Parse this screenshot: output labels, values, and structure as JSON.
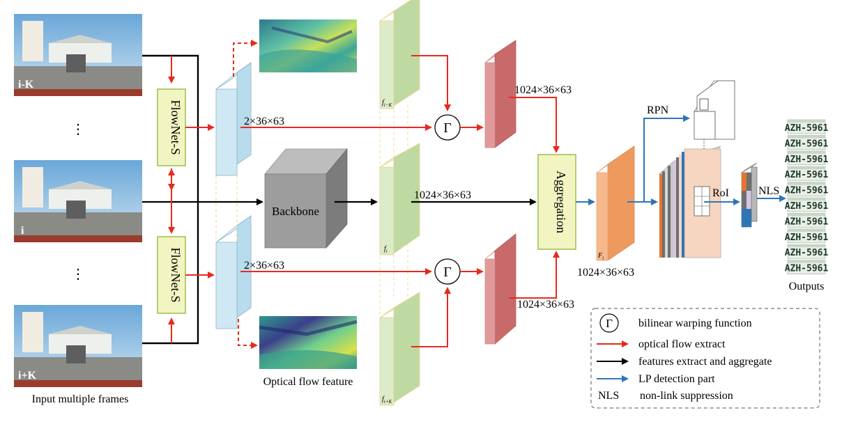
{
  "frames": {
    "top_tag": "i-K",
    "mid_tag": "i",
    "bot_tag": "i+K",
    "ellipsis": "⋮",
    "caption": "Input multiple frames"
  },
  "flownet_label": "FlowNet-S",
  "flow_dims": "2×36×63",
  "backbone_label": "Backbone",
  "feature_dims": "1024×36×63",
  "optical_flow_caption": "Optical flow feature",
  "feature_labels": {
    "top": "f",
    "top_sub": "i−K",
    "mid": "f",
    "mid_sub": "i",
    "bot": "f",
    "bot_sub": "i+K"
  },
  "warp_symbol": "Γ",
  "aggregation_label": "Aggregation",
  "agg_feature": {
    "label": "F",
    "sub": "i"
  },
  "rpn_label": "RPN",
  "roi_label": "RoI",
  "nls_label": "NLS",
  "outputs": {
    "plate_text": "AZH-5961",
    "count": 10,
    "caption": "Outputs"
  },
  "legend": [
    {
      "symbol": "Γ",
      "text": "bilinear warping function",
      "kind": "gamma"
    },
    {
      "color": "#e8291c",
      "text": "optical flow extract",
      "kind": "arrow"
    },
    {
      "color": "#000000",
      "text": "features extract and aggregate",
      "kind": "arrow"
    },
    {
      "color": "#2e75b6",
      "text": "LP detection part",
      "kind": "arrow"
    },
    {
      "symbol": "NLS",
      "text": "non-link suppression",
      "kind": "abbr"
    }
  ],
  "colors": {
    "red": "#e8291c",
    "black": "#000000",
    "blue": "#2e75b6",
    "flownet_fill": "#f2f5c2",
    "flownet_border": "#9bbf4a",
    "flow_map": "#b8dcec",
    "feature_green": "#cfe3b4",
    "warped_red": "#d98282",
    "agg_orange": "#f2a36b"
  }
}
